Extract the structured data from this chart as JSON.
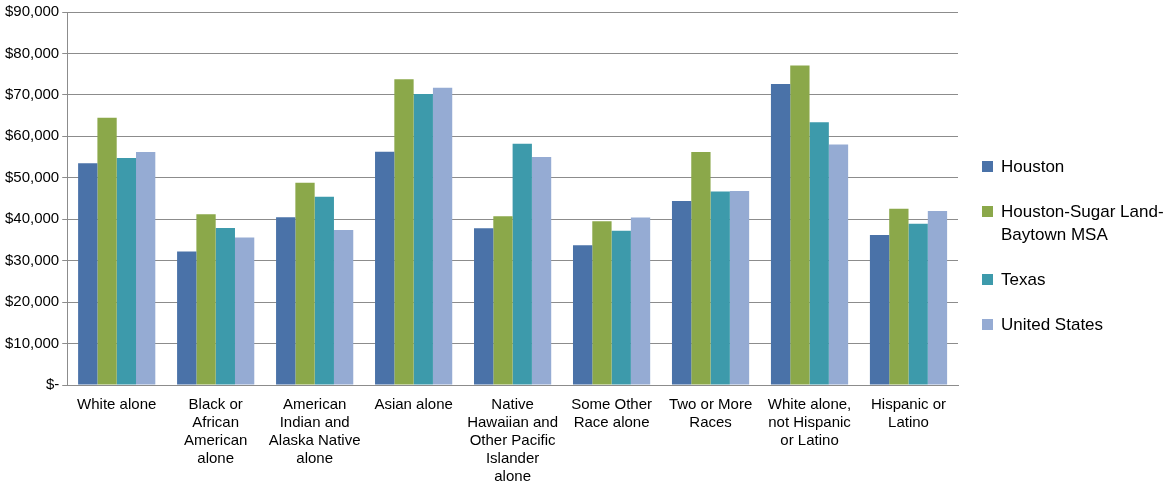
{
  "chart_data": {
    "type": "bar",
    "categories": [
      "White alone",
      "Black or African American alone",
      "American Indian and Alaska Native alone",
      "Asian alone",
      "Native Hawaiian and Other Pacific Islander alone",
      "Some Other Race alone",
      "Two or More Races",
      "White alone, not Hispanic or Latino",
      "Hispanic or Latino"
    ],
    "series": [
      {
        "name": "Houston",
        "color": "#4a72a8",
        "values": [
          53500,
          32200,
          40500,
          56300,
          37800,
          33700,
          44400,
          72600,
          36200
        ]
      },
      {
        "name": "Houston-Sugar Land-Baytown MSA",
        "color": "#8ba84a",
        "values": [
          64500,
          41200,
          48800,
          73800,
          40700,
          39500,
          56200,
          77100,
          42500
        ]
      },
      {
        "name": "Texas",
        "color": "#3d9aab",
        "values": [
          54800,
          37900,
          45400,
          70200,
          58200,
          37200,
          46700,
          63400,
          38900
        ]
      },
      {
        "name": "United States",
        "color": "#95abd3",
        "values": [
          56200,
          35600,
          37400,
          71700,
          55000,
          40400,
          46800,
          58000,
          42000
        ]
      }
    ],
    "ylim": [
      0,
      90000
    ],
    "yticks": [
      {
        "value": 0,
        "label": "$-"
      },
      {
        "value": 10000,
        "label": "$10,000"
      },
      {
        "value": 20000,
        "label": "$20,000"
      },
      {
        "value": 30000,
        "label": "$30,000"
      },
      {
        "value": 40000,
        "label": "$40,000"
      },
      {
        "value": 50000,
        "label": "$50,000"
      },
      {
        "value": 60000,
        "label": "$60,000"
      },
      {
        "value": 70000,
        "label": "$70,000"
      },
      {
        "value": 80000,
        "label": "$80,000"
      },
      {
        "value": 90000,
        "label": "$90,000"
      }
    ],
    "grid": "y",
    "legend": "right"
  }
}
